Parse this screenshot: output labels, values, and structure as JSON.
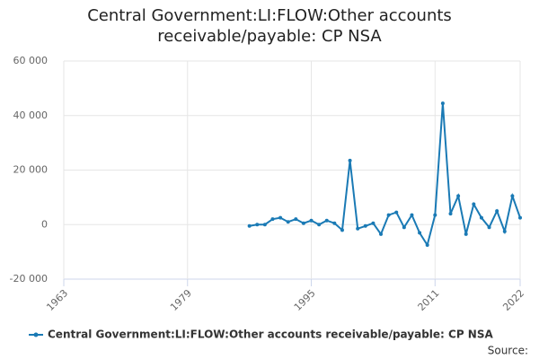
{
  "chart_data": {
    "type": "line",
    "title": "Central Government:LI:FLOW:Other accounts receivable/payable: CP NSA",
    "x": [
      1987,
      1988,
      1989,
      1990,
      1991,
      1992,
      1993,
      1994,
      1995,
      1996,
      1997,
      1998,
      1999,
      2000,
      2001,
      2002,
      2003,
      2004,
      2005,
      2006,
      2007,
      2008,
      2009,
      2010,
      2011,
      2012,
      2013,
      2014,
      2015,
      2016,
      2017,
      2018,
      2019,
      2020,
      2021,
      2022
    ],
    "series": [
      {
        "name": "Central Government:LI:FLOW:Other accounts receivable/payable: CP NSA",
        "color": "#1a7ab5",
        "values": [
          -500,
          0,
          0,
          2000,
          2500,
          1000,
          2000,
          500,
          1500,
          0,
          1500,
          500,
          -2000,
          23500,
          -1500,
          -500,
          500,
          -3500,
          3500,
          4500,
          -1000,
          3500,
          -3000,
          -7500,
          3500,
          44500,
          4000,
          10500,
          -3500,
          7500,
          2500,
          -1000,
          5000,
          -2500,
          10500,
          2500
        ]
      }
    ],
    "xlim": [
      1963,
      2022
    ],
    "xticks": [
      1963,
      1979,
      1995,
      2011,
      2022
    ],
    "ylim": [
      -20000,
      60000
    ],
    "yticks": [
      {
        "value": -20000,
        "label": "-20 000"
      },
      0,
      {
        "value": 20000,
        "label": "20 000"
      },
      {
        "value": 40000,
        "label": "40 000"
      },
      {
        "value": 60000,
        "label": "60 000"
      }
    ],
    "grid": true,
    "legend": "bottom",
    "source": "Source:"
  }
}
